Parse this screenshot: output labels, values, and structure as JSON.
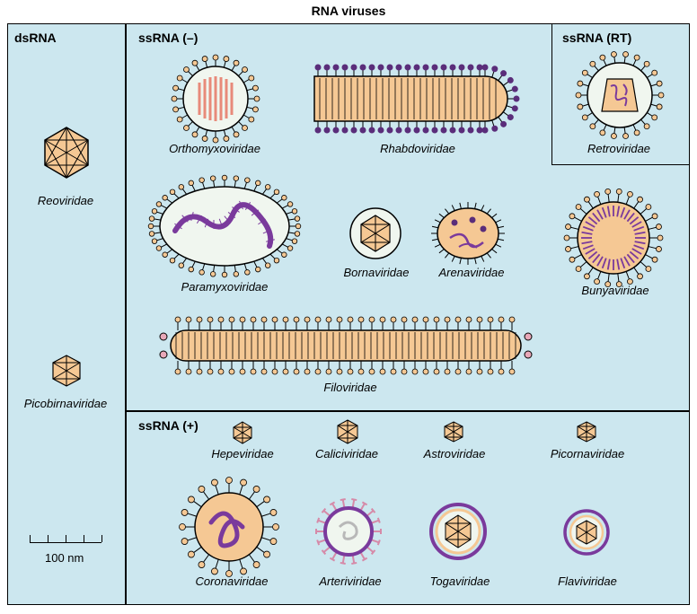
{
  "title": "RNA viruses",
  "colors": {
    "panel_bg": "#cce7ef",
    "virus_fill": "#f5c894",
    "virus_stroke": "#000000",
    "inner_pale": "#f0f6ef",
    "rna_red": "#e88a7a",
    "rna_purple": "#7a3a9c",
    "spike_purple_dark": "#5a2d7a",
    "spike_pink": "#d68aa8",
    "filo_pink": "#e8a8b8"
  },
  "sections": {
    "dsRNA": {
      "label": "dsRNA"
    },
    "ssRNA_neg": {
      "label": "ssRNA (–)"
    },
    "ssRNA_RT": {
      "label": "ssRNA (RT)"
    },
    "ssRNA_pos": {
      "label": "ssRNA (+)"
    }
  },
  "viruses": {
    "reoviridae": "Reoviridae",
    "picobirnaviridae": "Picobirnaviridae",
    "orthomyxoviridae": "Orthomyxoviridae",
    "rhabdoviridae": "Rhabdoviridae",
    "paramyxoviridae": "Paramyxoviridae",
    "bornaviridae": "Bornaviridae",
    "arenaviridae": "Arenaviridae",
    "bunyaviridae": "Bunyaviridae",
    "filoviridae": "Filoviridae",
    "retroviridae": "Retroviridae",
    "hepeviridae": "Hepeviridae",
    "caliciviridae": "Caliciviridae",
    "astroviridae": "Astroviridae",
    "picornaviridae": "Picornaviridae",
    "coronaviridae": "Coronaviridae",
    "arteriviridae": "Arteriviridae",
    "togaviridae": "Togaviridae",
    "flaviviridae": "Flaviviridae"
  },
  "scale": {
    "label": "100 nm"
  }
}
